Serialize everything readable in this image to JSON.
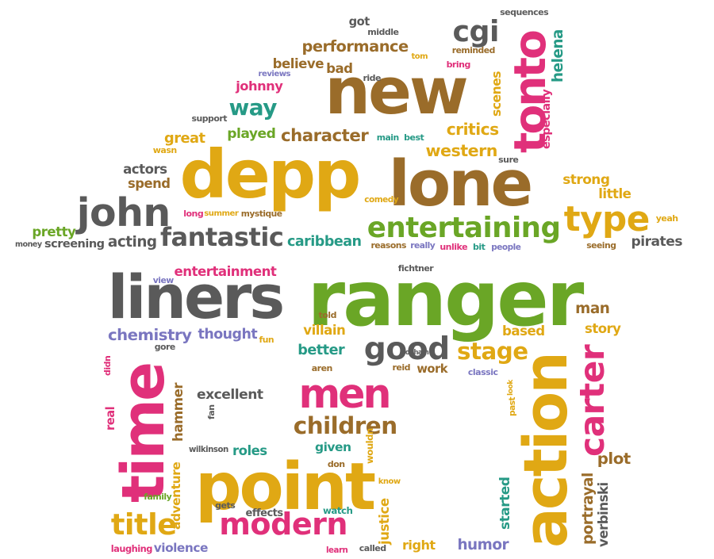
{
  "colors": {
    "brown": "#9a6c2a",
    "gold": "#e0a814",
    "green": "#6aa626",
    "teal": "#269a86",
    "gray": "#5a5a5a",
    "pink": "#e0307a",
    "purple": "#7a76c0"
  },
  "words": [
    {
      "text": "new",
      "color": "brown"
    },
    {
      "text": "depp",
      "color": "gold"
    },
    {
      "text": "lone",
      "color": "brown"
    },
    {
      "text": "tonto",
      "color": "pink"
    },
    {
      "text": "ranger",
      "color": "green"
    },
    {
      "text": "liners",
      "color": "gray"
    },
    {
      "text": "point",
      "color": "gold"
    },
    {
      "text": "action",
      "color": "gold"
    },
    {
      "text": "time",
      "color": "pink"
    },
    {
      "text": "men",
      "color": "pink"
    },
    {
      "text": "john",
      "color": "gray"
    },
    {
      "text": "type",
      "color": "gold"
    },
    {
      "text": "entertaining",
      "color": "green"
    },
    {
      "text": "fantastic",
      "color": "gray"
    },
    {
      "text": "modern",
      "color": "pink"
    },
    {
      "text": "good",
      "color": "gray"
    },
    {
      "text": "carter",
      "color": "pink"
    },
    {
      "text": "cgi",
      "color": "gray"
    },
    {
      "text": "children",
      "color": "brown"
    },
    {
      "text": "title",
      "color": "gold"
    },
    {
      "text": "stage",
      "color": "gold"
    },
    {
      "text": "way",
      "color": "teal"
    },
    {
      "text": "performance",
      "color": "brown"
    },
    {
      "text": "character",
      "color": "brown"
    },
    {
      "text": "critics",
      "color": "gold"
    },
    {
      "text": "western",
      "color": "gold"
    },
    {
      "text": "chemistry",
      "color": "purple"
    },
    {
      "text": "thought",
      "color": "purple"
    },
    {
      "text": "entertainment",
      "color": "pink"
    },
    {
      "text": "excellent",
      "color": "gray"
    },
    {
      "text": "played",
      "color": "green"
    },
    {
      "text": "great",
      "color": "gold"
    },
    {
      "text": "caribbean",
      "color": "teal"
    },
    {
      "text": "acting",
      "color": "gray"
    },
    {
      "text": "screening",
      "color": "gray"
    },
    {
      "text": "pirates",
      "color": "gray"
    },
    {
      "text": "strong",
      "color": "gold"
    },
    {
      "text": "little",
      "color": "gold"
    },
    {
      "text": "helena",
      "color": "teal"
    },
    {
      "text": "especially",
      "color": "pink"
    },
    {
      "text": "scenes",
      "color": "gold"
    },
    {
      "text": "believe",
      "color": "brown"
    },
    {
      "text": "bad",
      "color": "brown"
    },
    {
      "text": "johnny",
      "color": "pink"
    },
    {
      "text": "actors",
      "color": "gray"
    },
    {
      "text": "spend",
      "color": "brown"
    },
    {
      "text": "pretty",
      "color": "green"
    },
    {
      "text": "better",
      "color": "teal"
    },
    {
      "text": "based",
      "color": "gold"
    },
    {
      "text": "story",
      "color": "gold"
    },
    {
      "text": "man",
      "color": "brown"
    },
    {
      "text": "villain",
      "color": "gold"
    },
    {
      "text": "plot",
      "color": "brown"
    },
    {
      "text": "portrayal",
      "color": "brown"
    },
    {
      "text": "verbinski",
      "color": "gray"
    },
    {
      "text": "started",
      "color": "teal"
    },
    {
      "text": "humor",
      "color": "purple"
    },
    {
      "text": "right",
      "color": "gold"
    },
    {
      "text": "justice",
      "color": "gold"
    },
    {
      "text": "violence",
      "color": "purple"
    },
    {
      "text": "laughing",
      "color": "pink"
    },
    {
      "text": "adventure",
      "color": "gold"
    },
    {
      "text": "hammer",
      "color": "brown"
    },
    {
      "text": "real",
      "color": "pink"
    },
    {
      "text": "roles",
      "color": "teal"
    },
    {
      "text": "given",
      "color": "teal"
    },
    {
      "text": "work",
      "color": "brown"
    },
    {
      "text": "effects",
      "color": "gray"
    },
    {
      "text": "watch",
      "color": "teal"
    },
    {
      "text": "gets",
      "color": "gray"
    },
    {
      "text": "family",
      "color": "green"
    },
    {
      "text": "wilkinson",
      "color": "gray"
    },
    {
      "text": "learn",
      "color": "pink"
    },
    {
      "text": "called",
      "color": "gray"
    },
    {
      "text": "know",
      "color": "gold"
    },
    {
      "text": "wouldn",
      "color": "gold"
    },
    {
      "text": "don",
      "color": "brown"
    },
    {
      "text": "look",
      "color": "gold"
    },
    {
      "text": "past",
      "color": "gold"
    },
    {
      "text": "classic",
      "color": "purple"
    },
    {
      "text": "reid",
      "color": "brown"
    },
    {
      "text": "aren",
      "color": "brown"
    },
    {
      "text": "bonham",
      "color": "gray"
    },
    {
      "text": "told",
      "color": "brown"
    },
    {
      "text": "fichtner",
      "color": "gray"
    },
    {
      "text": "view",
      "color": "purple"
    },
    {
      "text": "gore",
      "color": "gray"
    },
    {
      "text": "didn",
      "color": "pink"
    },
    {
      "text": "fun",
      "color": "gold"
    },
    {
      "text": "fan",
      "color": "gray"
    },
    {
      "text": "got",
      "color": "gray"
    },
    {
      "text": "middle",
      "color": "gray"
    },
    {
      "text": "sequences",
      "color": "gray"
    },
    {
      "text": "ride",
      "color": "gray"
    },
    {
      "text": "tom",
      "color": "gold"
    },
    {
      "text": "reminded",
      "color": "brown"
    },
    {
      "text": "bring",
      "color": "pink"
    },
    {
      "text": "reviews",
      "color": "purple"
    },
    {
      "text": "support",
      "color": "gray"
    },
    {
      "text": "wasn",
      "color": "gold"
    },
    {
      "text": "main",
      "color": "teal"
    },
    {
      "text": "best",
      "color": "teal"
    },
    {
      "text": "sure",
      "color": "gray"
    },
    {
      "text": "comedy",
      "color": "gold"
    },
    {
      "text": "long",
      "color": "pink"
    },
    {
      "text": "summer",
      "color": "gold"
    },
    {
      "text": "mystique",
      "color": "brown"
    },
    {
      "text": "money",
      "color": "gray"
    },
    {
      "text": "reasons",
      "color": "brown"
    },
    {
      "text": "really",
      "color": "purple"
    },
    {
      "text": "unlike",
      "color": "pink"
    },
    {
      "text": "bit",
      "color": "teal"
    },
    {
      "text": "people",
      "color": "purple"
    },
    {
      "text": "seeing",
      "color": "brown"
    },
    {
      "text": "yeah",
      "color": "gold"
    }
  ]
}
